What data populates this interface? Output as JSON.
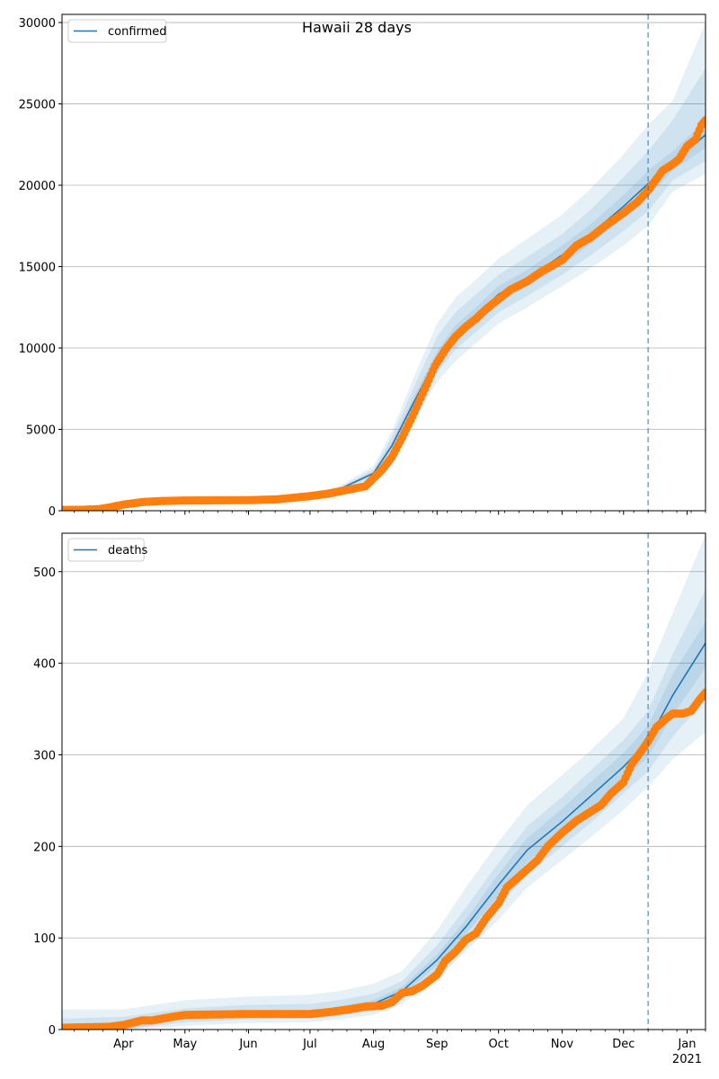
{
  "figure": {
    "title": "Hawaii 28 days",
    "x_tick_labels": [
      "Apr",
      "May",
      "Jun",
      "Jul",
      "Aug",
      "Sep",
      "Oct",
      "Nov",
      "Dec",
      "Jan"
    ],
    "x_year_label": "2021"
  },
  "colors": {
    "model_line": "#1f77b4",
    "observed": "#ff7f0e",
    "band": "#1f77b4",
    "forecast_line": "#1f77b4",
    "grid": "#b0b0b0"
  },
  "chart_data": [
    {
      "type": "line",
      "legend": [
        "confirmed"
      ],
      "legend_position": "top-left",
      "grid": "horizontal",
      "x_type": "date",
      "xlim": [
        "2020-03-02",
        "2021-01-10"
      ],
      "ylim": [
        0,
        30500
      ],
      "y_ticks": [
        0,
        5000,
        10000,
        15000,
        20000,
        25000,
        30000
      ],
      "forecast_start": "2020-12-13",
      "series": [
        {
          "name": "confirmed",
          "kind": "model",
          "x": [
            "2020-03-02",
            "2020-03-15",
            "2020-04-01",
            "2020-04-15",
            "2020-05-01",
            "2020-05-15",
            "2020-06-01",
            "2020-06-15",
            "2020-07-01",
            "2020-07-15",
            "2020-08-01",
            "2020-08-10",
            "2020-08-20",
            "2020-09-01",
            "2020-09-10",
            "2020-09-20",
            "2020-10-01",
            "2020-10-15",
            "2020-11-01",
            "2020-11-15",
            "2020-12-01",
            "2020-12-13",
            "2020-12-25",
            "2021-01-10"
          ],
          "y": [
            0,
            20,
            350,
            600,
            640,
            650,
            670,
            730,
            950,
            1300,
            2300,
            4000,
            6500,
            9400,
            10900,
            12000,
            13300,
            14300,
            15700,
            17000,
            18700,
            20100,
            21400,
            23100
          ]
        },
        {
          "name": "confirmed observed",
          "kind": "observed",
          "x": [
            "2020-03-02",
            "2020-03-12",
            "2020-03-20",
            "2020-03-25",
            "2020-04-01",
            "2020-04-10",
            "2020-04-20",
            "2020-05-01",
            "2020-05-15",
            "2020-06-01",
            "2020-06-15",
            "2020-07-01",
            "2020-07-10",
            "2020-07-20",
            "2020-07-28",
            "2020-08-01",
            "2020-08-05",
            "2020-08-10",
            "2020-08-15",
            "2020-08-20",
            "2020-08-25",
            "2020-08-31",
            "2020-09-05",
            "2020-09-10",
            "2020-09-15",
            "2020-09-20",
            "2020-09-25",
            "2020-10-01",
            "2020-10-07",
            "2020-10-15",
            "2020-10-22",
            "2020-11-01",
            "2020-11-08",
            "2020-11-15",
            "2020-11-22",
            "2020-12-01",
            "2020-12-08",
            "2020-12-13",
            "2020-12-16",
            "2020-12-20",
            "2020-12-25",
            "2020-12-28",
            "2021-01-01",
            "2021-01-05",
            "2021-01-08",
            "2021-01-10"
          ],
          "y": [
            50,
            60,
            100,
            200,
            380,
            530,
            600,
            630,
            640,
            650,
            700,
            900,
            1050,
            1300,
            1500,
            2000,
            2500,
            3300,
            4500,
            5800,
            7200,
            8900,
            9900,
            10700,
            11300,
            11800,
            12400,
            13000,
            13600,
            14100,
            14700,
            15400,
            16300,
            16800,
            17500,
            18300,
            19000,
            19700,
            20200,
            20900,
            21300,
            21600,
            22400,
            22800,
            23700,
            24000
          ]
        }
      ],
      "bands": [
        {
          "x": [
            "2020-03-02",
            "2020-04-01",
            "2020-05-01",
            "2020-06-01",
            "2020-07-01",
            "2020-07-15",
            "2020-08-01",
            "2020-08-10",
            "2020-08-20",
            "2020-09-01",
            "2020-09-10",
            "2020-09-20",
            "2020-10-01",
            "2020-10-15",
            "2020-11-01",
            "2020-11-15",
            "2020-12-01",
            "2020-12-13",
            "2020-12-25",
            "2021-01-10"
          ],
          "lower": [
            0,
            300,
            560,
            590,
            830,
            1150,
            1950,
            3300,
            5400,
            7900,
            9200,
            10300,
            11500,
            12500,
            13800,
            14900,
            16300,
            17500,
            19600,
            20700
          ],
          "upper": [
            0,
            400,
            720,
            750,
            1080,
            1500,
            2750,
            4900,
            8000,
            11500,
            13100,
            14200,
            15500,
            16700,
            18200,
            19800,
            21900,
            23700,
            25200,
            30000
          ]
        },
        {
          "x": [
            "2020-03-02",
            "2020-04-01",
            "2020-05-01",
            "2020-06-01",
            "2020-07-01",
            "2020-07-15",
            "2020-08-01",
            "2020-08-10",
            "2020-08-20",
            "2020-09-01",
            "2020-09-10",
            "2020-09-20",
            "2020-10-01",
            "2020-10-15",
            "2020-11-01",
            "2020-11-15",
            "2020-12-01",
            "2020-12-13",
            "2020-12-25",
            "2021-01-10"
          ],
          "lower": [
            0,
            320,
            590,
            620,
            880,
            1210,
            2070,
            3550,
            5800,
            8500,
            9900,
            11000,
            12200,
            13200,
            14500,
            15700,
            17200,
            18400,
            20300,
            21500
          ],
          "upper": [
            0,
            380,
            690,
            720,
            1020,
            1400,
            2550,
            4550,
            7400,
            10700,
            12200,
            13300,
            14500,
            15600,
            17000,
            18500,
            20500,
            22100,
            24000,
            27200
          ]
        },
        {
          "x": [
            "2020-03-02",
            "2020-04-01",
            "2020-05-01",
            "2020-06-01",
            "2020-07-01",
            "2020-07-15",
            "2020-08-01",
            "2020-08-10",
            "2020-08-20",
            "2020-09-01",
            "2020-09-10",
            "2020-09-20",
            "2020-10-01",
            "2020-10-15",
            "2020-11-01",
            "2020-11-15",
            "2020-12-01",
            "2020-12-13",
            "2020-12-25",
            "2021-01-10"
          ],
          "lower": [
            0,
            335,
            615,
            645,
            915,
            1260,
            2180,
            3780,
            6150,
            9000,
            10400,
            11500,
            12800,
            13800,
            15100,
            16400,
            18000,
            19300,
            20900,
            22300
          ],
          "upper": [
            0,
            365,
            665,
            695,
            985,
            1340,
            2420,
            4220,
            6850,
            9800,
            11400,
            12500,
            13800,
            14800,
            16300,
            17600,
            19400,
            20900,
            22100,
            24000
          ]
        }
      ]
    },
    {
      "type": "line",
      "legend": [
        "deaths"
      ],
      "legend_position": "top-left",
      "grid": "horizontal",
      "x_type": "date",
      "xlim": [
        "2020-03-02",
        "2021-01-10"
      ],
      "ylim": [
        0,
        542
      ],
      "y_ticks": [
        0,
        100,
        200,
        300,
        400,
        500
      ],
      "forecast_start": "2020-12-13",
      "series": [
        {
          "name": "deaths",
          "kind": "model",
          "x": [
            "2020-03-02",
            "2020-04-01",
            "2020-04-15",
            "2020-05-01",
            "2020-06-01",
            "2020-07-01",
            "2020-07-15",
            "2020-08-01",
            "2020-08-15",
            "2020-09-01",
            "2020-09-15",
            "2020-10-01",
            "2020-10-15",
            "2020-11-01",
            "2020-11-15",
            "2020-12-01",
            "2020-12-13",
            "2020-12-25",
            "2021-01-10"
          ],
          "y": [
            0,
            3,
            9,
            14,
            17,
            18,
            22,
            28,
            42,
            76,
            112,
            158,
            196,
            227,
            255,
            287,
            315,
            365,
            422
          ]
        },
        {
          "name": "deaths observed",
          "kind": "observed",
          "x": [
            "2020-03-02",
            "2020-03-25",
            "2020-04-01",
            "2020-04-10",
            "2020-04-15",
            "2020-04-25",
            "2020-05-01",
            "2020-06-01",
            "2020-07-01",
            "2020-07-10",
            "2020-07-20",
            "2020-07-28",
            "2020-08-05",
            "2020-08-10",
            "2020-08-15",
            "2020-08-20",
            "2020-08-25",
            "2020-09-01",
            "2020-09-05",
            "2020-09-10",
            "2020-09-15",
            "2020-09-20",
            "2020-09-25",
            "2020-10-01",
            "2020-10-05",
            "2020-10-10",
            "2020-10-15",
            "2020-10-20",
            "2020-10-25",
            "2020-11-01",
            "2020-11-08",
            "2020-11-15",
            "2020-11-20",
            "2020-11-25",
            "2020-12-01",
            "2020-12-05",
            "2020-12-10",
            "2020-12-13",
            "2020-12-17",
            "2020-12-22",
            "2020-12-25",
            "2020-12-30",
            "2021-01-03",
            "2021-01-07",
            "2021-01-10"
          ],
          "y": [
            2,
            3,
            5,
            10,
            10,
            14,
            16,
            17,
            17,
            19,
            22,
            25,
            26,
            30,
            40,
            42,
            48,
            60,
            75,
            85,
            98,
            105,
            122,
            138,
            155,
            165,
            175,
            185,
            200,
            215,
            228,
            238,
            245,
            258,
            270,
            290,
            305,
            315,
            330,
            340,
            345,
            345,
            348,
            360,
            368
          ]
        }
      ],
      "bands": [
        {
          "x": [
            "2020-03-02",
            "2020-04-01",
            "2020-05-01",
            "2020-06-01",
            "2020-07-01",
            "2020-07-15",
            "2020-08-01",
            "2020-08-15",
            "2020-09-01",
            "2020-09-15",
            "2020-10-01",
            "2020-10-15",
            "2020-11-01",
            "2020-11-15",
            "2020-12-01",
            "2020-12-13",
            "2020-12-25",
            "2021-01-10"
          ],
          "lower": [
            0,
            0,
            4,
            7,
            8,
            11,
            16,
            28,
            55,
            85,
            120,
            155,
            185,
            210,
            240,
            265,
            295,
            325
          ],
          "upper": [
            22,
            22,
            32,
            36,
            38,
            42,
            50,
            64,
            108,
            155,
            205,
            245,
            278,
            305,
            340,
            390,
            455,
            540
          ]
        },
        {
          "x": [
            "2020-03-02",
            "2020-04-01",
            "2020-05-01",
            "2020-06-01",
            "2020-07-01",
            "2020-07-15",
            "2020-08-01",
            "2020-08-15",
            "2020-09-01",
            "2020-09-15",
            "2020-10-01",
            "2020-10-15",
            "2020-11-01",
            "2020-11-15",
            "2020-12-01",
            "2020-12-13",
            "2020-12-25",
            "2021-01-10"
          ],
          "lower": [
            0,
            0,
            8,
            11,
            12,
            15,
            20,
            33,
            63,
            95,
            134,
            170,
            200,
            226,
            258,
            282,
            320,
            360
          ],
          "upper": [
            12,
            14,
            23,
            27,
            28,
            32,
            39,
            53,
            92,
            133,
            182,
            222,
            254,
            283,
            316,
            348,
            410,
            480
          ]
        },
        {
          "x": [
            "2020-03-02",
            "2020-04-01",
            "2020-05-01",
            "2020-06-01",
            "2020-07-01",
            "2020-07-15",
            "2020-08-01",
            "2020-08-15",
            "2020-09-01",
            "2020-09-15",
            "2020-10-01",
            "2020-10-15",
            "2020-11-01",
            "2020-11-15",
            "2020-12-01",
            "2020-12-13",
            "2020-12-25",
            "2021-01-10"
          ],
          "lower": [
            0,
            0,
            11,
            14,
            15,
            19,
            24,
            37,
            70,
            104,
            146,
            183,
            213,
            240,
            272,
            298,
            343,
            395
          ],
          "upper": [
            5,
            6,
            17,
            20,
            21,
            25,
            32,
            47,
            82,
            120,
            170,
            209,
            241,
            270,
            302,
            332,
            388,
            445
          ]
        }
      ]
    }
  ]
}
